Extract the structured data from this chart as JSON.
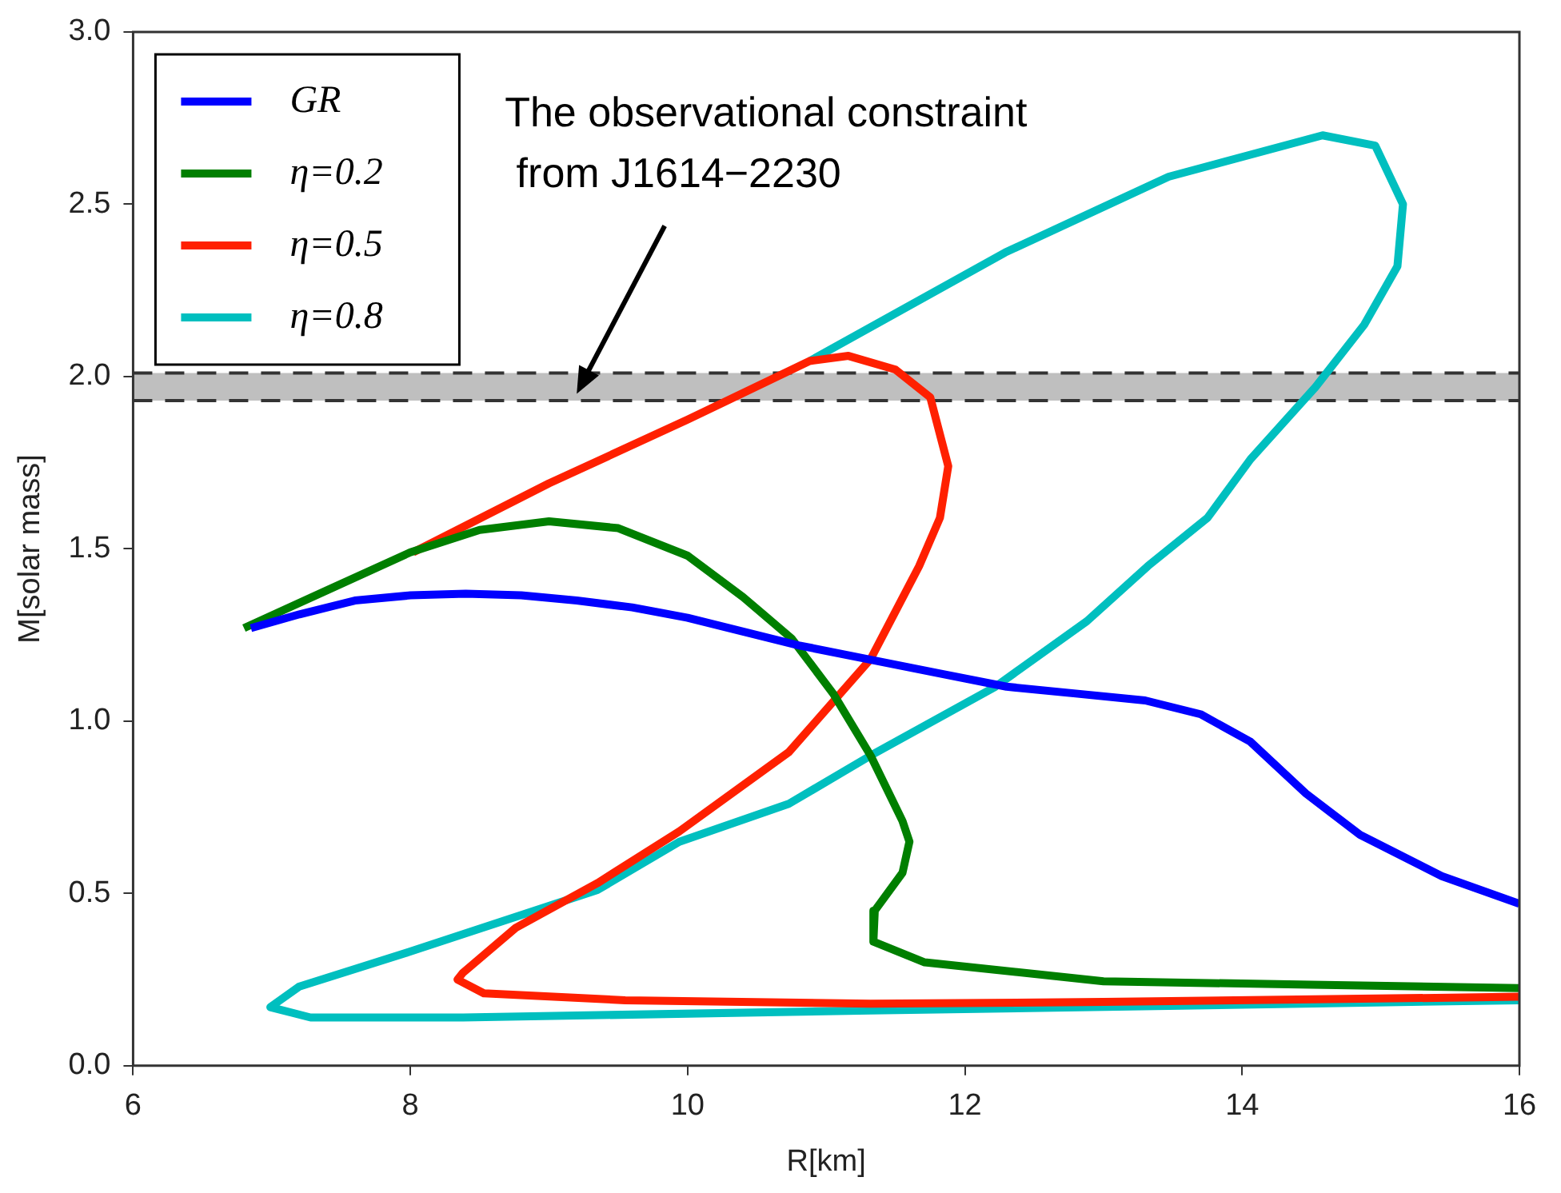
{
  "chart_data": {
    "type": "line",
    "xlabel": "R[km]",
    "ylabel": "M[solar mass]",
    "xlim": [
      6,
      16
    ],
    "xticks": [
      6,
      8,
      10,
      12,
      14,
      16
    ],
    "ylim": [
      0,
      3
    ],
    "yticks": [
      {
        "value": 0,
        "label": "0.0"
      },
      {
        "value": 0.5,
        "label": "0.5"
      },
      {
        "value": 1,
        "label": "1.0"
      },
      {
        "value": 1.5,
        "label": "1.5"
      },
      {
        "value": 2,
        "label": "2.0"
      },
      {
        "value": 2.5,
        "label": "2.5"
      },
      {
        "value": 3,
        "label": "3.0"
      }
    ],
    "grid": false,
    "legend": "top left",
    "marker": "none",
    "line_style": "solid",
    "bands": [
      {
        "axis": "y",
        "from": 1.93,
        "to": 2.01,
        "color": "#bfbfbf"
      }
    ],
    "ref_lines": [
      {
        "axis": "y",
        "value": 1.93,
        "color": "#333333",
        "line_style": "dashed"
      },
      {
        "axis": "y",
        "value": 2.01,
        "color": "#333333",
        "line_style": "dashed"
      }
    ],
    "annotations": [
      {
        "text": "The observational constraint\n from J1614−2230",
        "x": 9.2,
        "y": 1.95
      }
    ],
    "series": [
      {
        "name": "GR",
        "color": "#0000ff",
        "x": [
          6.85,
          7.2,
          7.6,
          8.0,
          8.4,
          8.8,
          9.2,
          9.6,
          10.0,
          10.4,
          10.8,
          11.3,
          11.8,
          12.3,
          12.8,
          13.3,
          13.7,
          14.06,
          14.46,
          14.85,
          15.44,
          16
        ],
        "values": [
          1.27,
          1.31,
          1.35,
          1.365,
          1.37,
          1.365,
          1.35,
          1.33,
          1.3,
          1.26,
          1.22,
          1.18,
          1.14,
          1.1,
          1.08,
          1.06,
          1.02,
          0.94,
          0.79,
          0.67,
          0.55,
          0.47
        ]
      },
      {
        "name": "η=0.2",
        "color": "#007f00",
        "x": [
          6.8,
          7.4,
          8.0,
          8.5,
          9.0,
          9.5,
          10.0,
          10.4,
          10.75,
          11.05,
          11.32,
          11.55,
          11.6,
          11.55,
          11.35,
          11.34,
          11.71,
          13.0,
          14.5,
          16
        ],
        "values": [
          1.27,
          1.38,
          1.49,
          1.555,
          1.58,
          1.56,
          1.48,
          1.36,
          1.24,
          1.08,
          0.9,
          0.71,
          0.65,
          0.56,
          0.45,
          0.36,
          0.3,
          0.245,
          0.235,
          0.225
        ]
      },
      {
        "name": "η=0.5",
        "color": "#ff2000",
        "x": [
          8.02,
          9.0,
          10.0,
          10.88,
          11.16,
          11.5,
          11.75,
          11.88,
          11.82,
          11.67,
          11.32,
          10.73,
          9.94,
          9.35,
          8.76,
          8.38,
          8.34,
          8.53,
          9.55,
          11.32,
          13.0,
          16
        ],
        "values": [
          1.49,
          1.69,
          1.875,
          2.045,
          2.06,
          2.02,
          1.94,
          1.74,
          1.59,
          1.45,
          1.18,
          0.91,
          0.68,
          0.53,
          0.4,
          0.27,
          0.25,
          0.21,
          0.19,
          0.18,
          0.185,
          0.2
        ]
      },
      {
        "name": "η=0.8",
        "color": "#00bfbf",
        "x": [
          10.88,
          12.29,
          13.47,
          14.58,
          14.96,
          15.16,
          15.12,
          14.88,
          14.53,
          14.06,
          13.75,
          13.32,
          12.88,
          12.22,
          11.32,
          10.73,
          9.94,
          9.35,
          7.99,
          7.2,
          6.99,
          7.28,
          8.38,
          11.32,
          16
        ],
        "values": [
          2.045,
          2.36,
          2.58,
          2.7,
          2.67,
          2.5,
          2.32,
          2.15,
          1.97,
          1.76,
          1.59,
          1.45,
          1.29,
          1.1,
          0.9,
          0.76,
          0.65,
          0.51,
          0.33,
          0.23,
          0.17,
          0.14,
          0.14,
          0.16,
          0.19
        ]
      }
    ]
  }
}
